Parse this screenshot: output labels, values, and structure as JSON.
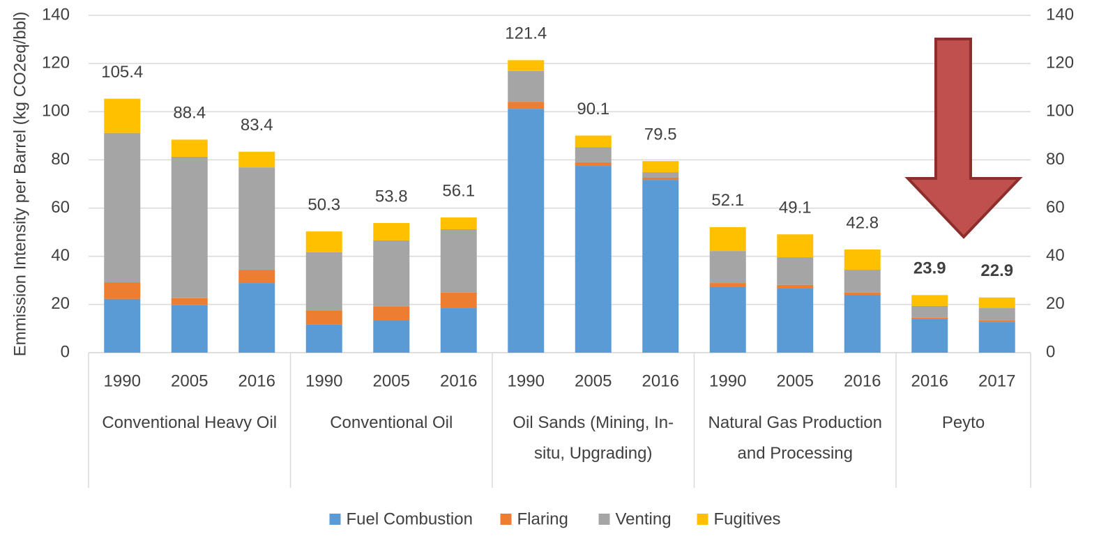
{
  "chart_data": {
    "type": "stacked_bar",
    "y_label": "Emmission Intensity per Barrel (kg CO2eq/bbl)",
    "groups": [
      {
        "name": "Conventional Heavy Oil",
        "categories": [
          "1990",
          "2005",
          "2016"
        ]
      },
      {
        "name": "Conventional Oil",
        "categories": [
          "1990",
          "2005",
          "2016"
        ]
      },
      {
        "name": "Oil Sands (Mining, In-situ, Upgrading)",
        "categories": [
          "1990",
          "2005",
          "2016"
        ]
      },
      {
        "name": "Natural Gas Production and Processing",
        "categories": [
          "1990",
          "2005",
          "2016"
        ]
      },
      {
        "name": "Peyto",
        "categories": [
          "2016",
          "2017"
        ]
      }
    ],
    "series": [
      {
        "name": "Fuel Combustion",
        "color": "#5b9bd5",
        "values": [
          22.3,
          19.7,
          28.9,
          11.6,
          13.3,
          18.5,
          101.2,
          77.5,
          71.7,
          27.2,
          26.6,
          24.0,
          13.9,
          12.7
        ]
      },
      {
        "name": "Flaring",
        "color": "#ed7d31",
        "values": [
          6.9,
          2.9,
          5.5,
          6.0,
          5.8,
          6.4,
          2.9,
          1.5,
          0.9,
          1.7,
          1.5,
          0.9,
          0.6,
          0.6
        ]
      },
      {
        "name": "Venting",
        "color": "#a5a5a5",
        "values": [
          62.0,
          58.7,
          42.5,
          24.1,
          27.5,
          26.3,
          12.8,
          6.3,
          2.3,
          13.3,
          11.5,
          9.5,
          4.9,
          5.2
        ]
      },
      {
        "name": "Fugitives",
        "color": "#ffc000",
        "values": [
          14.2,
          7.1,
          6.5,
          8.6,
          7.2,
          4.9,
          4.5,
          4.8,
          4.6,
          9.9,
          9.5,
          8.4,
          4.5,
          4.4
        ]
      }
    ],
    "totals": [
      105.4,
      88.4,
      83.4,
      50.3,
      53.8,
      56.1,
      121.4,
      90.1,
      79.5,
      52.1,
      49.1,
      42.8,
      23.9,
      22.9
    ],
    "ylim": [
      0,
      140
    ],
    "yticks": [
      0,
      20,
      40,
      60,
      80,
      100,
      120,
      140
    ],
    "y2lim": [
      0,
      140
    ],
    "y2ticks": [
      0,
      20,
      40,
      60,
      80,
      100,
      120,
      140
    ],
    "grid": true,
    "legend": "bottom"
  }
}
